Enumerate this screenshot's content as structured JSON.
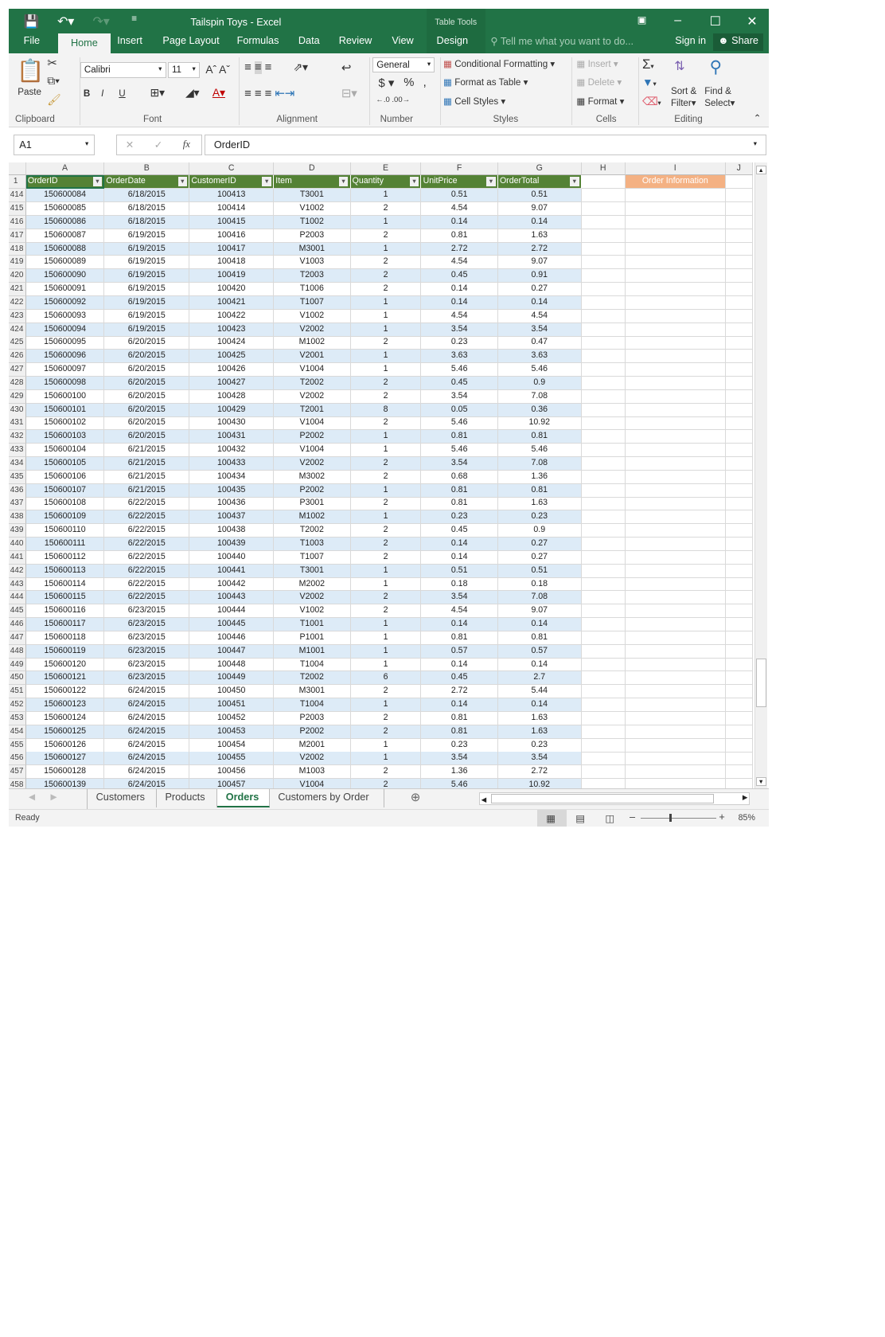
{
  "window": {
    "title": "Tailspin Toys - Excel",
    "context_tab_group": "Table Tools"
  },
  "tabs": [
    "File",
    "Home",
    "Insert",
    "Page Layout",
    "Formulas",
    "Data",
    "Review",
    "View",
    "Design"
  ],
  "tell_me": "Tell me what you want to do...",
  "sign_in": "Sign in",
  "share": "Share",
  "ribbon": {
    "clipboard": {
      "label": "Clipboard",
      "paste": "Paste"
    },
    "font": {
      "label": "Font",
      "name": "Calibri",
      "size": "11",
      "bold": "B",
      "italic": "I",
      "underline": "U"
    },
    "alignment": {
      "label": "Alignment"
    },
    "number": {
      "label": "Number",
      "format": "General",
      "currency": "$",
      "percent": "%",
      "comma": ","
    },
    "styles": {
      "label": "Styles",
      "conditional": "Conditional Formatting",
      "format_table": "Format as Table",
      "cell_styles": "Cell Styles"
    },
    "cells": {
      "label": "Cells",
      "insert": "Insert",
      "delete": "Delete",
      "format": "Format"
    },
    "editing": {
      "label": "Editing",
      "sort": "Sort &",
      "filter": "Filter",
      "find": "Find &",
      "select": "Select"
    }
  },
  "formula_bar": {
    "name_box": "A1",
    "formula": "OrderID"
  },
  "columns": [
    "A",
    "B",
    "C",
    "D",
    "E",
    "F",
    "G",
    "H",
    "I",
    "J"
  ],
  "table": {
    "headers": [
      "OrderID",
      "OrderDate",
      "CustomerID",
      "Item",
      "Quantity",
      "UnitPrice",
      "OrderTotal"
    ],
    "side_header": "Order Information",
    "rows": [
      [
        "414",
        "150600084",
        "6/18/2015",
        "100413",
        "T3001",
        "1",
        "0.51",
        "0.51"
      ],
      [
        "415",
        "150600085",
        "6/18/2015",
        "100414",
        "V1002",
        "2",
        "4.54",
        "9.07"
      ],
      [
        "416",
        "150600086",
        "6/18/2015",
        "100415",
        "T1002",
        "1",
        "0.14",
        "0.14"
      ],
      [
        "417",
        "150600087",
        "6/19/2015",
        "100416",
        "P2003",
        "2",
        "0.81",
        "1.63"
      ],
      [
        "418",
        "150600088",
        "6/19/2015",
        "100417",
        "M3001",
        "1",
        "2.72",
        "2.72"
      ],
      [
        "419",
        "150600089",
        "6/19/2015",
        "100418",
        "V1003",
        "2",
        "4.54",
        "9.07"
      ],
      [
        "420",
        "150600090",
        "6/19/2015",
        "100419",
        "T2003",
        "2",
        "0.45",
        "0.91"
      ],
      [
        "421",
        "150600091",
        "6/19/2015",
        "100420",
        "T1006",
        "2",
        "0.14",
        "0.27"
      ],
      [
        "422",
        "150600092",
        "6/19/2015",
        "100421",
        "T1007",
        "1",
        "0.14",
        "0.14"
      ],
      [
        "423",
        "150600093",
        "6/19/2015",
        "100422",
        "V1002",
        "1",
        "4.54",
        "4.54"
      ],
      [
        "424",
        "150600094",
        "6/19/2015",
        "100423",
        "V2002",
        "1",
        "3.54",
        "3.54"
      ],
      [
        "425",
        "150600095",
        "6/20/2015",
        "100424",
        "M1002",
        "2",
        "0.23",
        "0.47"
      ],
      [
        "426",
        "150600096",
        "6/20/2015",
        "100425",
        "V2001",
        "1",
        "3.63",
        "3.63"
      ],
      [
        "427",
        "150600097",
        "6/20/2015",
        "100426",
        "V1004",
        "1",
        "5.46",
        "5.46"
      ],
      [
        "428",
        "150600098",
        "6/20/2015",
        "100427",
        "T2002",
        "2",
        "0.45",
        "0.9"
      ],
      [
        "429",
        "150600100",
        "6/20/2015",
        "100428",
        "V2002",
        "2",
        "3.54",
        "7.08"
      ],
      [
        "430",
        "150600101",
        "6/20/2015",
        "100429",
        "T2001",
        "8",
        "0.05",
        "0.36"
      ],
      [
        "431",
        "150600102",
        "6/20/2015",
        "100430",
        "V1004",
        "2",
        "5.46",
        "10.92"
      ],
      [
        "432",
        "150600103",
        "6/20/2015",
        "100431",
        "P2002",
        "1",
        "0.81",
        "0.81"
      ],
      [
        "433",
        "150600104",
        "6/21/2015",
        "100432",
        "V1004",
        "1",
        "5.46",
        "5.46"
      ],
      [
        "434",
        "150600105",
        "6/21/2015",
        "100433",
        "V2002",
        "2",
        "3.54",
        "7.08"
      ],
      [
        "435",
        "150600106",
        "6/21/2015",
        "100434",
        "M3002",
        "2",
        "0.68",
        "1.36"
      ],
      [
        "436",
        "150600107",
        "6/21/2015",
        "100435",
        "P2002",
        "1",
        "0.81",
        "0.81"
      ],
      [
        "437",
        "150600108",
        "6/22/2015",
        "100436",
        "P3001",
        "2",
        "0.81",
        "1.63"
      ],
      [
        "438",
        "150600109",
        "6/22/2015",
        "100437",
        "M1002",
        "1",
        "0.23",
        "0.23"
      ],
      [
        "439",
        "150600110",
        "6/22/2015",
        "100438",
        "T2002",
        "2",
        "0.45",
        "0.9"
      ],
      [
        "440",
        "150600111",
        "6/22/2015",
        "100439",
        "T1003",
        "2",
        "0.14",
        "0.27"
      ],
      [
        "441",
        "150600112",
        "6/22/2015",
        "100440",
        "T1007",
        "2",
        "0.14",
        "0.27"
      ],
      [
        "442",
        "150600113",
        "6/22/2015",
        "100441",
        "T3001",
        "1",
        "0.51",
        "0.51"
      ],
      [
        "443",
        "150600114",
        "6/22/2015",
        "100442",
        "M2002",
        "1",
        "0.18",
        "0.18"
      ],
      [
        "444",
        "150600115",
        "6/22/2015",
        "100443",
        "V2002",
        "2",
        "3.54",
        "7.08"
      ],
      [
        "445",
        "150600116",
        "6/23/2015",
        "100444",
        "V1002",
        "2",
        "4.54",
        "9.07"
      ],
      [
        "446",
        "150600117",
        "6/23/2015",
        "100445",
        "T1001",
        "1",
        "0.14",
        "0.14"
      ],
      [
        "447",
        "150600118",
        "6/23/2015",
        "100446",
        "P1001",
        "1",
        "0.81",
        "0.81"
      ],
      [
        "448",
        "150600119",
        "6/23/2015",
        "100447",
        "M1001",
        "1",
        "0.57",
        "0.57"
      ],
      [
        "449",
        "150600120",
        "6/23/2015",
        "100448",
        "T1004",
        "1",
        "0.14",
        "0.14"
      ],
      [
        "450",
        "150600121",
        "6/23/2015",
        "100449",
        "T2002",
        "6",
        "0.45",
        "2.7"
      ],
      [
        "451",
        "150600122",
        "6/24/2015",
        "100450",
        "M3001",
        "2",
        "2.72",
        "5.44"
      ],
      [
        "452",
        "150600123",
        "6/24/2015",
        "100451",
        "T1004",
        "1",
        "0.14",
        "0.14"
      ],
      [
        "453",
        "150600124",
        "6/24/2015",
        "100452",
        "P2003",
        "2",
        "0.81",
        "1.63"
      ],
      [
        "454",
        "150600125",
        "6/24/2015",
        "100453",
        "P2002",
        "2",
        "0.81",
        "1.63"
      ],
      [
        "455",
        "150600126",
        "6/24/2015",
        "100454",
        "M2001",
        "1",
        "0.23",
        "0.23"
      ],
      [
        "456",
        "150600127",
        "6/24/2015",
        "100455",
        "V2002",
        "1",
        "3.54",
        "3.54"
      ],
      [
        "457",
        "150600128",
        "6/24/2015",
        "100456",
        "M1003",
        "2",
        "1.36",
        "2.72"
      ],
      [
        "458",
        "150600139",
        "6/24/2015",
        "100457",
        "V1004",
        "2",
        "5.46",
        "10.92"
      ]
    ]
  },
  "sheets": [
    "Customers",
    "Products",
    "Orders",
    "Customers by Order"
  ],
  "active_sheet": "Orders",
  "status": {
    "ready": "Ready",
    "zoom": "85%"
  },
  "colors": {
    "excel_green": "#217346",
    "table_header": "#548235",
    "band": "#ddebf7",
    "order_info": "#f4b183"
  }
}
